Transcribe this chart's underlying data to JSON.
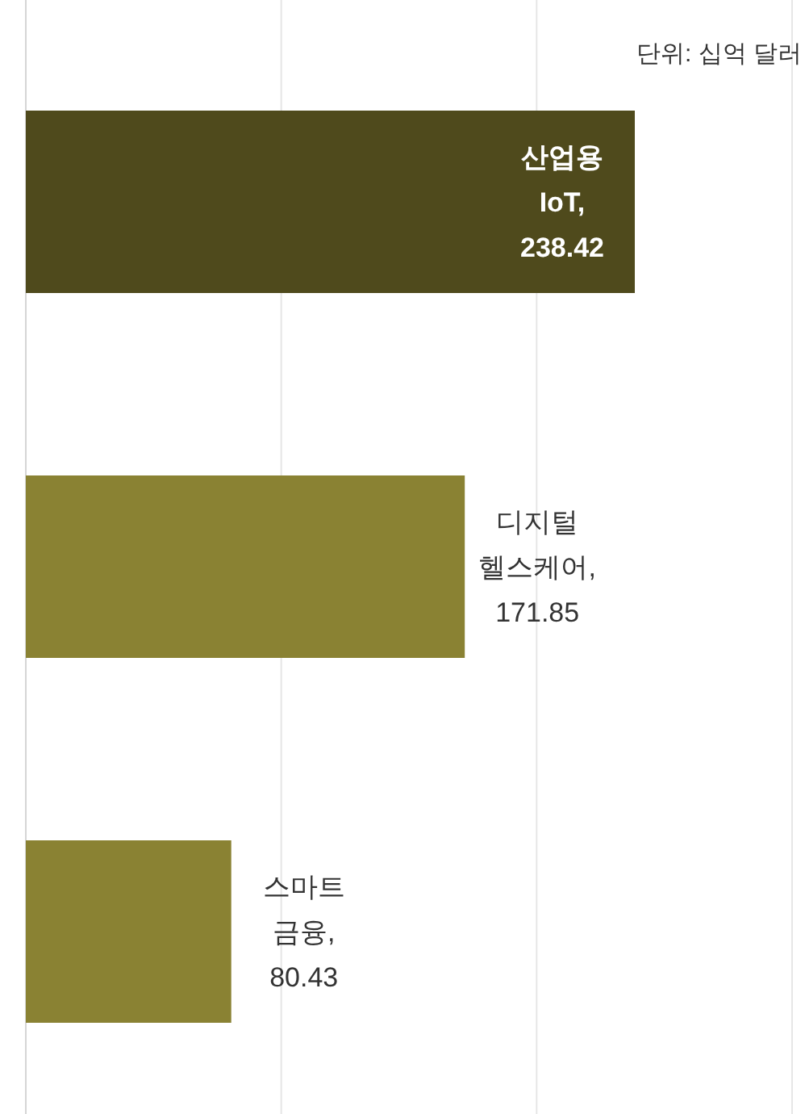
{
  "chart_data": {
    "type": "bar",
    "orientation": "horizontal",
    "categories": [
      null,
      null,
      null
    ],
    "values": [
      238.42,
      171.85,
      80.43
    ],
    "colors": [
      "#4f4a1c",
      "#8a8233",
      "#8a8233"
    ],
    "xlim": [
      0,
      300
    ],
    "xticks": [
      {
        "value": 0,
        "label": null
      },
      {
        "value": 100,
        "label": null
      },
      {
        "value": 200,
        "label": null
      },
      {
        "value": 300,
        "label": null
      }
    ],
    "value_labels": [
      "산업용 IoT, 238.42",
      "디지털 헬스케어, 171.85",
      "스마트 금융, 80.43"
    ],
    "grid": "x",
    "annotations": [
      "단위: 십억 달러"
    ]
  }
}
